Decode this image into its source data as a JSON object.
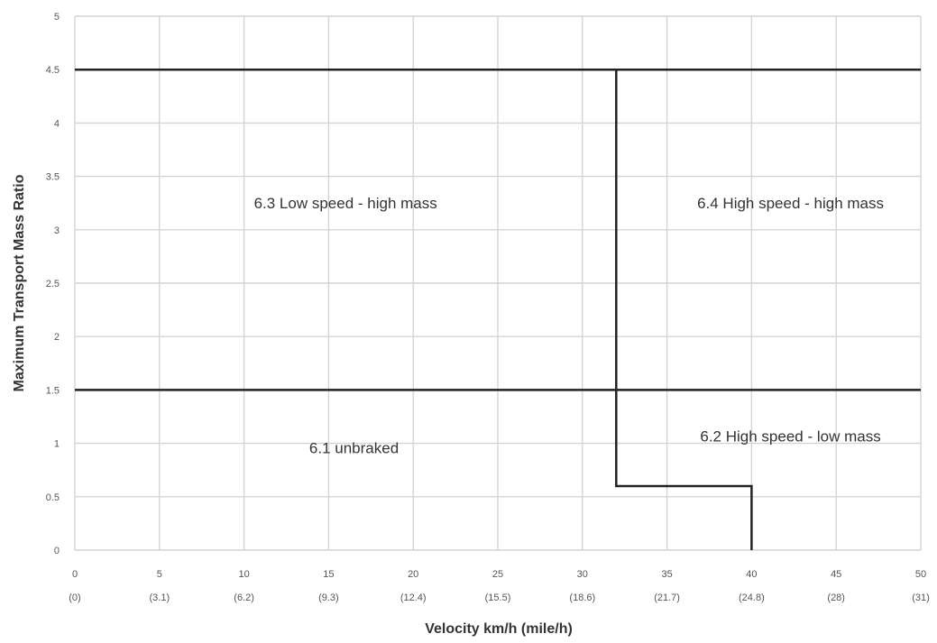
{
  "chart_data": {
    "type": "line",
    "title": "",
    "xlabel": "Velocity km/h (mile/h)",
    "ylabel": "Maximum Transport Mass Ratio",
    "xlim": [
      0,
      50
    ],
    "ylim": [
      0,
      5
    ],
    "grid": true,
    "x_ticks": [
      {
        "value": 0,
        "label": "0",
        "sublabel": "(0)"
      },
      {
        "value": 5,
        "label": "5",
        "sublabel": "(3.1)"
      },
      {
        "value": 10,
        "label": "10",
        "sublabel": "(6.2)"
      },
      {
        "value": 15,
        "label": "15",
        "sublabel": "(9.3)"
      },
      {
        "value": 20,
        "label": "20",
        "sublabel": "(12.4)"
      },
      {
        "value": 25,
        "label": "25",
        "sublabel": "(15.5)"
      },
      {
        "value": 30,
        "label": "30",
        "sublabel": "(18.6)"
      },
      {
        "value": 35,
        "label": "35",
        "sublabel": "(21.7)"
      },
      {
        "value": 40,
        "label": "40",
        "sublabel": "(24.8)"
      },
      {
        "value": 45,
        "label": "45",
        "sublabel": "(28)"
      },
      {
        "value": 50,
        "label": "50",
        "sublabel": "(31)"
      }
    ],
    "y_ticks": [
      {
        "value": 0,
        "label": "0"
      },
      {
        "value": 0.5,
        "label": "0.5"
      },
      {
        "value": 1,
        "label": "1"
      },
      {
        "value": 1.5,
        "label": "1.5"
      },
      {
        "value": 2,
        "label": "2"
      },
      {
        "value": 2.5,
        "label": "2.5"
      },
      {
        "value": 3,
        "label": "3"
      },
      {
        "value": 3.5,
        "label": "3.5"
      },
      {
        "value": 4,
        "label": "4"
      },
      {
        "value": 4.5,
        "label": "4.5"
      },
      {
        "value": 5,
        "label": "5"
      }
    ],
    "series": [
      {
        "x": [
          0,
          50
        ],
        "y": [
          4.5,
          4.5
        ]
      },
      {
        "x": [
          0,
          50
        ],
        "y": [
          1.5,
          1.5
        ]
      },
      {
        "x": [
          32,
          32,
          40,
          40
        ],
        "y": [
          4.5,
          0.6,
          0.6,
          0
        ]
      }
    ],
    "annotations": [
      {
        "text": "6.3  Low speed - high mass",
        "x": 16,
        "y": 3.25
      },
      {
        "text": "6.4  High speed - high mass",
        "x": 42.3,
        "y": 3.25
      },
      {
        "text": "6.1  unbraked",
        "x": 16.5,
        "y": 0.96
      },
      {
        "text": "6.2  High speed - low mass",
        "x": 42.3,
        "y": 1.07
      }
    ]
  }
}
